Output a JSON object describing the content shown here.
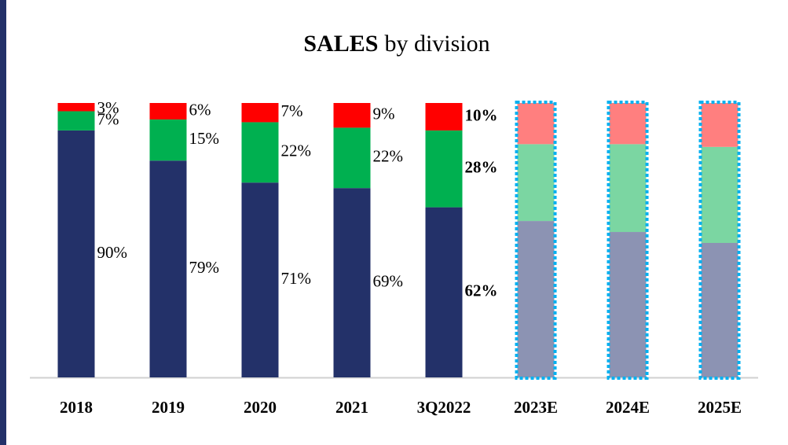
{
  "chart_data": {
    "type": "stacked_bar_100",
    "title_parts": [
      "SALES",
      "by division"
    ],
    "categories": [
      "2018",
      "2019",
      "2020",
      "2021",
      "3Q2022",
      "2023E",
      "2024E",
      "2025E"
    ],
    "estimated": [
      false,
      false,
      false,
      false,
      false,
      true,
      true,
      true
    ],
    "bold_labels": [
      false,
      false,
      false,
      false,
      true,
      false,
      false,
      false
    ],
    "ylim": [
      0,
      100
    ],
    "series": [
      {
        "color": "#233169",
        "estimate_color": "#8c93b3",
        "values": [
          90,
          79,
          71,
          69,
          62,
          57,
          53,
          49
        ],
        "value_labels": [
          "90%",
          "79%",
          "71%",
          "69%",
          "62%",
          null,
          null,
          null
        ]
      },
      {
        "color": "#00b050",
        "estimate_color": "#7bd6a2",
        "values": [
          7,
          15,
          22,
          22,
          28,
          28,
          32,
          35
        ],
        "value_labels": [
          "7%",
          "15%",
          "22%",
          "22%",
          "28%",
          null,
          null,
          null
        ]
      },
      {
        "color": "#ff0000",
        "estimate_color": "#ff7f7f",
        "values": [
          3,
          6,
          7,
          9,
          10,
          15,
          15,
          16
        ],
        "value_labels": [
          "3%",
          "6%",
          "7%",
          "9%",
          "10%",
          null,
          null,
          null
        ]
      }
    ],
    "estimate_border_color": "#00b0f0"
  }
}
